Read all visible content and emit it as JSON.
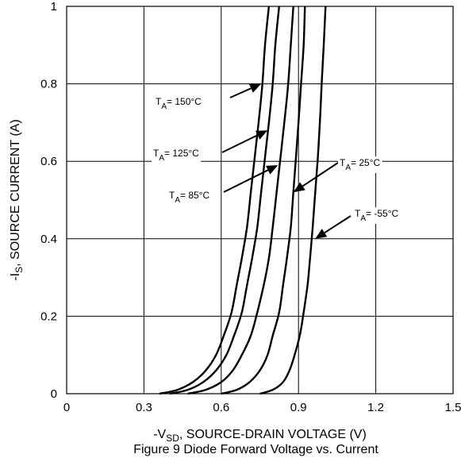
{
  "chart_data": {
    "type": "line",
    "title": "",
    "caption": "Figure 9 Diode Forward Voltage vs. Current",
    "xlabel": {
      "prefix": "-V",
      "sub": "SD",
      "rest": ", SOURCE-DRAIN VOLTAGE (V)"
    },
    "ylabel": {
      "prefix": "-I",
      "sub": "S",
      "rest": ", SOURCE CURRENT (A)"
    },
    "xlim": [
      0,
      1.5
    ],
    "ylim": [
      0,
      1
    ],
    "xticks": [
      "0",
      "0.3",
      "0.6",
      "0.9",
      "1.2",
      "1.5"
    ],
    "yticks": [
      "0",
      "0.2",
      "0.4",
      "0.6",
      "0.8",
      "1"
    ],
    "grid": true,
    "series": [
      {
        "name": "T_A = 150°C",
        "x": [
          0.36,
          0.43,
          0.49,
          0.54,
          0.58,
          0.61,
          0.64,
          0.66,
          0.68,
          0.7,
          0.715,
          0.73,
          0.745,
          0.76,
          0.77,
          0.785
        ],
        "y": [
          0,
          0.01,
          0.03,
          0.06,
          0.1,
          0.15,
          0.21,
          0.28,
          0.35,
          0.43,
          0.52,
          0.61,
          0.7,
          0.8,
          0.9,
          1.0
        ]
      },
      {
        "name": "T_A = 125°C",
        "x": [
          0.4,
          0.47,
          0.53,
          0.58,
          0.62,
          0.65,
          0.68,
          0.7,
          0.72,
          0.74,
          0.755,
          0.77,
          0.785,
          0.8,
          0.81,
          0.825
        ],
        "y": [
          0,
          0.01,
          0.03,
          0.06,
          0.1,
          0.15,
          0.21,
          0.28,
          0.35,
          0.43,
          0.52,
          0.61,
          0.7,
          0.8,
          0.9,
          1.0
        ]
      },
      {
        "name": "T_A = 85°C",
        "x": [
          0.47,
          0.54,
          0.6,
          0.645,
          0.68,
          0.715,
          0.74,
          0.765,
          0.785,
          0.8,
          0.815,
          0.83,
          0.845,
          0.86,
          0.87,
          0.88
        ],
        "y": [
          0,
          0.01,
          0.03,
          0.06,
          0.1,
          0.15,
          0.21,
          0.28,
          0.35,
          0.43,
          0.52,
          0.61,
          0.7,
          0.8,
          0.9,
          1.0
        ]
      },
      {
        "name": "T_A = 25°C",
        "x": [
          0.6,
          0.66,
          0.71,
          0.75,
          0.78,
          0.8,
          0.825,
          0.84,
          0.855,
          0.87,
          0.88,
          0.89,
          0.9,
          0.91,
          0.92,
          0.925
        ],
        "y": [
          0,
          0.01,
          0.03,
          0.06,
          0.1,
          0.15,
          0.21,
          0.28,
          0.35,
          0.43,
          0.52,
          0.61,
          0.7,
          0.8,
          0.9,
          1.0
        ]
      },
      {
        "name": "T_A = -55°C",
        "x": [
          0.75,
          0.8,
          0.84,
          0.865,
          0.885,
          0.905,
          0.92,
          0.935,
          0.945,
          0.955,
          0.965,
          0.975,
          0.983,
          0.99,
          0.998,
          1.005
        ],
        "y": [
          0,
          0.01,
          0.03,
          0.06,
          0.1,
          0.15,
          0.21,
          0.28,
          0.35,
          0.43,
          0.52,
          0.61,
          0.7,
          0.8,
          0.9,
          1.0
        ]
      }
    ],
    "annotations": [
      {
        "prefix": "T",
        "sub": "A",
        "text": "= 150°C",
        "target": [
          0.755,
          0.8
        ]
      },
      {
        "prefix": "T",
        "sub": "A",
        "text": "= 125°C",
        "target": [
          0.78,
          0.68
        ]
      },
      {
        "prefix": "T",
        "sub": "A",
        "text": "= 85°C",
        "target": [
          0.82,
          0.59
        ]
      },
      {
        "prefix": "T",
        "sub": "A",
        "text": "= 25°C",
        "target": [
          0.88,
          0.52
        ]
      },
      {
        "prefix": "T",
        "sub": "A",
        "text": "= -55°C",
        "target": [
          0.965,
          0.4
        ]
      }
    ]
  }
}
